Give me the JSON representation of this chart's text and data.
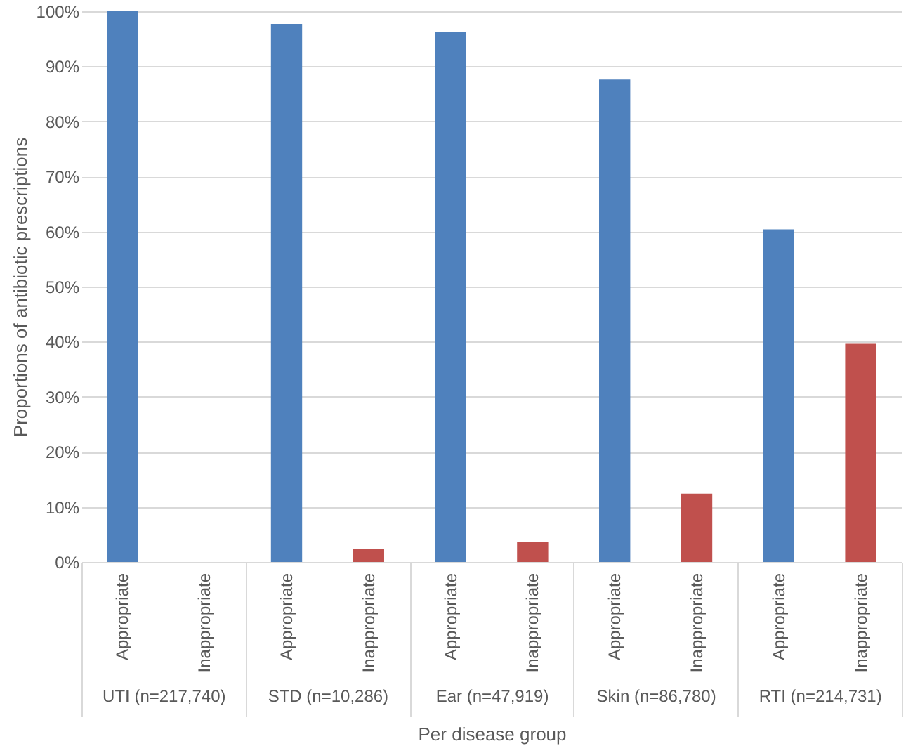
{
  "chart_data": {
    "type": "bar",
    "xlabel": "Per disease group",
    "ylabel": "Proportions of antibiotic prescriptions",
    "categories": [
      "UTI (n=217,740)",
      "STD (n=10,286)",
      "Ear (n=47,919)",
      "Skin (n=86,780)",
      "RTI (n=214,731)"
    ],
    "series": [
      {
        "name": "Appropriate",
        "color": "#4f81bd",
        "values": [
          100,
          97.7,
          96.3,
          87.6,
          60.4
        ]
      },
      {
        "name": "Inappropriate",
        "color": "#c0504d",
        "values": [
          0,
          2.3,
          3.7,
          12.4,
          39.6
        ]
      }
    ],
    "ylim": [
      0,
      100
    ],
    "yticks": [
      {
        "value": 0,
        "label": "0%"
      },
      {
        "value": 10,
        "label": "10%"
      },
      {
        "value": 20,
        "label": "20%"
      },
      {
        "value": 30,
        "label": "30%"
      },
      {
        "value": 40,
        "label": "40%"
      },
      {
        "value": 50,
        "label": "50%"
      },
      {
        "value": 60,
        "label": "60%"
      },
      {
        "value": 70,
        "label": "70%"
      },
      {
        "value": 80,
        "label": "80%"
      },
      {
        "value": 90,
        "label": "90%"
      },
      {
        "value": 100,
        "label": "100%"
      }
    ],
    "grid": "y"
  }
}
